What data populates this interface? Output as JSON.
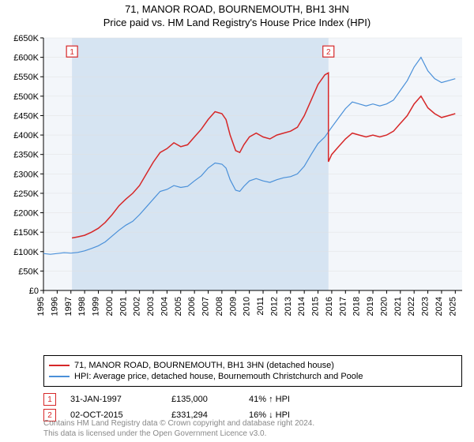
{
  "title_line1": "71, MANOR ROAD, BOURNEMOUTH, BH1 3HN",
  "title_line2": "Price paid vs. HM Land Registry's House Price Index (HPI)",
  "chart": {
    "type": "line",
    "background_color": "#f3f6fa",
    "highlight_band_color": "#d6e4f2",
    "grid_color": "#e0e0e0",
    "xlim": [
      1995,
      2025.5
    ],
    "ylim": [
      0,
      650000
    ],
    "ytick_step": 50000,
    "ytick_labels": [
      "£0",
      "£50K",
      "£100K",
      "£150K",
      "£200K",
      "£250K",
      "£300K",
      "£350K",
      "£400K",
      "£450K",
      "£500K",
      "£550K",
      "£600K",
      "£650K"
    ],
    "xtick_step": 1,
    "xtick_labels": [
      "1995",
      "1996",
      "1997",
      "1998",
      "1999",
      "2000",
      "2001",
      "2002",
      "2003",
      "2004",
      "2005",
      "2006",
      "2007",
      "2008",
      "2009",
      "2010",
      "2011",
      "2012",
      "2013",
      "2014",
      "2015",
      "2016",
      "2017",
      "2018",
      "2019",
      "2020",
      "2021",
      "2022",
      "2023",
      "2024",
      "2025"
    ],
    "series": [
      {
        "name": "property",
        "color": "#d62728",
        "line_width": 1.5,
        "points": [
          [
            1997.08,
            135000
          ],
          [
            1997.5,
            138000
          ],
          [
            1998,
            142000
          ],
          [
            1998.5,
            150000
          ],
          [
            1999,
            160000
          ],
          [
            1999.5,
            175000
          ],
          [
            2000,
            195000
          ],
          [
            2000.5,
            218000
          ],
          [
            2001,
            235000
          ],
          [
            2001.5,
            250000
          ],
          [
            2002,
            270000
          ],
          [
            2002.5,
            300000
          ],
          [
            2003,
            330000
          ],
          [
            2003.5,
            355000
          ],
          [
            2004,
            365000
          ],
          [
            2004.5,
            380000
          ],
          [
            2005,
            370000
          ],
          [
            2005.5,
            375000
          ],
          [
            2006,
            395000
          ],
          [
            2006.5,
            415000
          ],
          [
            2007,
            440000
          ],
          [
            2007.5,
            460000
          ],
          [
            2008,
            455000
          ],
          [
            2008.3,
            440000
          ],
          [
            2008.6,
            400000
          ],
          [
            2009,
            360000
          ],
          [
            2009.3,
            355000
          ],
          [
            2009.6,
            375000
          ],
          [
            2010,
            395000
          ],
          [
            2010.5,
            405000
          ],
          [
            2011,
            395000
          ],
          [
            2011.5,
            390000
          ],
          [
            2012,
            400000
          ],
          [
            2012.5,
            405000
          ],
          [
            2013,
            410000
          ],
          [
            2013.5,
            420000
          ],
          [
            2014,
            450000
          ],
          [
            2014.5,
            490000
          ],
          [
            2015,
            530000
          ],
          [
            2015.5,
            555000
          ],
          [
            2015.76,
            560000
          ],
          [
            2015.76,
            331294
          ],
          [
            2016,
            350000
          ],
          [
            2016.5,
            370000
          ],
          [
            2017,
            390000
          ],
          [
            2017.5,
            405000
          ],
          [
            2018,
            400000
          ],
          [
            2018.5,
            395000
          ],
          [
            2019,
            400000
          ],
          [
            2019.5,
            395000
          ],
          [
            2020,
            400000
          ],
          [
            2020.5,
            410000
          ],
          [
            2021,
            430000
          ],
          [
            2021.5,
            450000
          ],
          [
            2022,
            480000
          ],
          [
            2022.5,
            500000
          ],
          [
            2023,
            470000
          ],
          [
            2023.5,
            455000
          ],
          [
            2024,
            445000
          ],
          [
            2024.5,
            450000
          ],
          [
            2025,
            455000
          ]
        ]
      },
      {
        "name": "hpi",
        "color": "#4a90d9",
        "line_width": 1.2,
        "points": [
          [
            1995,
            95000
          ],
          [
            1995.5,
            93000
          ],
          [
            1996,
            95000
          ],
          [
            1996.5,
            97000
          ],
          [
            1997,
            96000
          ],
          [
            1997.5,
            98000
          ],
          [
            1998,
            102000
          ],
          [
            1998.5,
            108000
          ],
          [
            1999,
            115000
          ],
          [
            1999.5,
            125000
          ],
          [
            2000,
            140000
          ],
          [
            2000.5,
            155000
          ],
          [
            2001,
            168000
          ],
          [
            2001.5,
            178000
          ],
          [
            2002,
            195000
          ],
          [
            2002.5,
            215000
          ],
          [
            2003,
            235000
          ],
          [
            2003.5,
            255000
          ],
          [
            2004,
            260000
          ],
          [
            2004.5,
            270000
          ],
          [
            2005,
            265000
          ],
          [
            2005.5,
            268000
          ],
          [
            2006,
            282000
          ],
          [
            2006.5,
            295000
          ],
          [
            2007,
            315000
          ],
          [
            2007.5,
            328000
          ],
          [
            2008,
            325000
          ],
          [
            2008.3,
            315000
          ],
          [
            2008.6,
            285000
          ],
          [
            2009,
            258000
          ],
          [
            2009.3,
            255000
          ],
          [
            2009.6,
            268000
          ],
          [
            2010,
            282000
          ],
          [
            2010.5,
            288000
          ],
          [
            2011,
            282000
          ],
          [
            2011.5,
            278000
          ],
          [
            2012,
            285000
          ],
          [
            2012.5,
            290000
          ],
          [
            2013,
            293000
          ],
          [
            2013.5,
            300000
          ],
          [
            2014,
            320000
          ],
          [
            2014.5,
            350000
          ],
          [
            2015,
            378000
          ],
          [
            2015.5,
            395000
          ],
          [
            2016,
            420000
          ],
          [
            2016.5,
            444000
          ],
          [
            2017,
            468000
          ],
          [
            2017.5,
            485000
          ],
          [
            2018,
            480000
          ],
          [
            2018.5,
            475000
          ],
          [
            2019,
            480000
          ],
          [
            2019.5,
            475000
          ],
          [
            2020,
            480000
          ],
          [
            2020.5,
            490000
          ],
          [
            2021,
            515000
          ],
          [
            2021.5,
            540000
          ],
          [
            2022,
            575000
          ],
          [
            2022.5,
            600000
          ],
          [
            2023,
            565000
          ],
          [
            2023.5,
            545000
          ],
          [
            2024,
            535000
          ],
          [
            2024.5,
            540000
          ],
          [
            2025,
            545000
          ]
        ]
      }
    ],
    "markers": [
      {
        "id": "1",
        "x": 1997.08,
        "box_y": 615000
      },
      {
        "id": "2",
        "x": 2015.76,
        "box_y": 615000
      }
    ],
    "highlight_band": {
      "x_start": 1997.08,
      "x_end": 2015.76
    }
  },
  "legend": [
    {
      "color": "#d62728",
      "label": "71, MANOR ROAD, BOURNEMOUTH, BH1 3HN (detached house)"
    },
    {
      "color": "#4a90d9",
      "label": "HPI: Average price, detached house, Bournemouth Christchurch and Poole"
    }
  ],
  "trades": [
    {
      "marker": "1",
      "date": "31-JAN-1997",
      "price": "£135,000",
      "hpi": "41% ↑ HPI"
    },
    {
      "marker": "2",
      "date": "02-OCT-2015",
      "price": "£331,294",
      "hpi": "16% ↓ HPI"
    }
  ],
  "footer_line1": "Contains HM Land Registry data © Crown copyright and database right 2024.",
  "footer_line2": "This data is licensed under the Open Government Licence v3.0."
}
